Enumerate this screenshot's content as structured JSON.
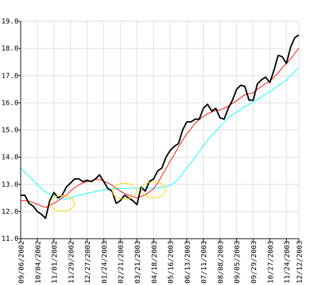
{
  "chart_data": {
    "type": "line",
    "title": "",
    "xlabel": "",
    "ylabel": "",
    "ylim": [
      11.0,
      19.0
    ],
    "y_ticks": [
      "19.0",
      "18.0",
      "17.0",
      "16.0",
      "15.0",
      "14.0",
      "13.0",
      "12.0",
      "11.0"
    ],
    "y_tick_values": [
      19.0,
      18.0,
      17.0,
      16.0,
      15.0,
      14.0,
      13.0,
      12.0,
      11.0
    ],
    "y_axis_side": "left",
    "grid": true,
    "legend": "none",
    "x_ticks": [
      "09/06/2002",
      "10/04/2002",
      "11/01/2002",
      "11/29/2002",
      "12/27/2002",
      "01/24/2003",
      "02/21/2003",
      "03/21/2003",
      "04/18/2003",
      "05/16/2003",
      "06/13/2003",
      "07/11/2003",
      "08/08/2003",
      "09/05/2003",
      "09/29/2003",
      "10/27/2003",
      "11/24/2003",
      "12/12/2003"
    ],
    "x_tick_index": [
      0,
      4,
      8,
      12,
      16,
      20,
      24,
      28,
      32,
      36,
      40,
      44,
      48,
      52,
      56,
      60,
      64,
      67
    ],
    "series": [
      {
        "color": "#000000",
        "width": 2,
        "values": [
          12.6,
          12.6,
          12.3,
          12.2,
          12.0,
          11.9,
          11.75,
          12.4,
          12.7,
          12.5,
          12.6,
          12.9,
          13.05,
          13.2,
          13.2,
          13.1,
          13.15,
          13.1,
          13.2,
          13.35,
          13.1,
          12.85,
          12.75,
          12.3,
          12.4,
          12.6,
          12.5,
          12.4,
          12.25,
          12.9,
          12.75,
          13.1,
          13.2,
          13.5,
          13.6,
          14.0,
          14.25,
          14.4,
          14.5,
          15.0,
          15.3,
          15.3,
          15.4,
          15.4,
          15.8,
          15.95,
          15.7,
          15.8,
          15.45,
          15.4,
          15.8,
          16.1,
          16.5,
          16.65,
          16.6,
          16.1,
          16.1,
          16.7,
          16.85,
          16.95,
          16.75,
          17.2,
          17.75,
          17.7,
          17.45,
          18.05,
          18.4,
          18.5
        ]
      },
      {
        "color": "#ff0000",
        "width": 1,
        "values": [
          12.4,
          12.4,
          12.38,
          12.33,
          12.27,
          12.2,
          12.15,
          12.23,
          12.3,
          12.4,
          12.5,
          12.6,
          12.75,
          12.88,
          12.98,
          13.05,
          13.1,
          13.13,
          13.18,
          13.18,
          13.12,
          13.05,
          12.97,
          12.85,
          12.75,
          12.66,
          12.6,
          12.55,
          12.5,
          12.55,
          12.62,
          12.72,
          12.84,
          13.05,
          13.32,
          13.58,
          13.85,
          14.1,
          14.38,
          14.62,
          14.86,
          15.05,
          15.25,
          15.38,
          15.5,
          15.6,
          15.66,
          15.72,
          15.74,
          15.8,
          15.88,
          15.98,
          16.08,
          16.2,
          16.3,
          16.33,
          16.37,
          16.5,
          16.6,
          16.72,
          16.8,
          16.95,
          17.1,
          17.3,
          17.45,
          17.62,
          17.82,
          18.02
        ]
      },
      {
        "color": "#00ffff",
        "width": 1,
        "values": [
          13.6,
          13.45,
          13.3,
          13.15,
          13.0,
          12.85,
          12.72,
          12.62,
          12.55,
          12.5,
          12.45,
          12.46,
          12.5,
          12.55,
          12.6,
          12.63,
          12.67,
          12.7,
          12.74,
          12.77,
          12.8,
          12.82,
          12.84,
          12.85,
          12.85,
          12.85,
          12.86,
          12.86,
          12.86,
          12.86,
          12.86,
          12.86,
          12.86,
          12.87,
          12.88,
          12.92,
          12.97,
          13.05,
          13.2,
          13.4,
          13.6,
          13.8,
          14.0,
          14.2,
          14.42,
          14.62,
          14.8,
          14.95,
          15.12,
          15.28,
          15.45,
          15.56,
          15.66,
          15.76,
          15.86,
          15.95,
          16.03,
          16.12,
          16.22,
          16.32,
          16.42,
          16.52,
          16.62,
          16.73,
          16.85,
          17.0,
          17.15,
          17.3
        ]
      }
    ],
    "highlights": {
      "color": "#ffd700",
      "circles": [
        {
          "x_index": 10,
          "y": 12.3
        },
        {
          "x_index": 25,
          "y": 12.75
        },
        {
          "x_index": 32,
          "y": 12.8
        }
      ]
    }
  }
}
